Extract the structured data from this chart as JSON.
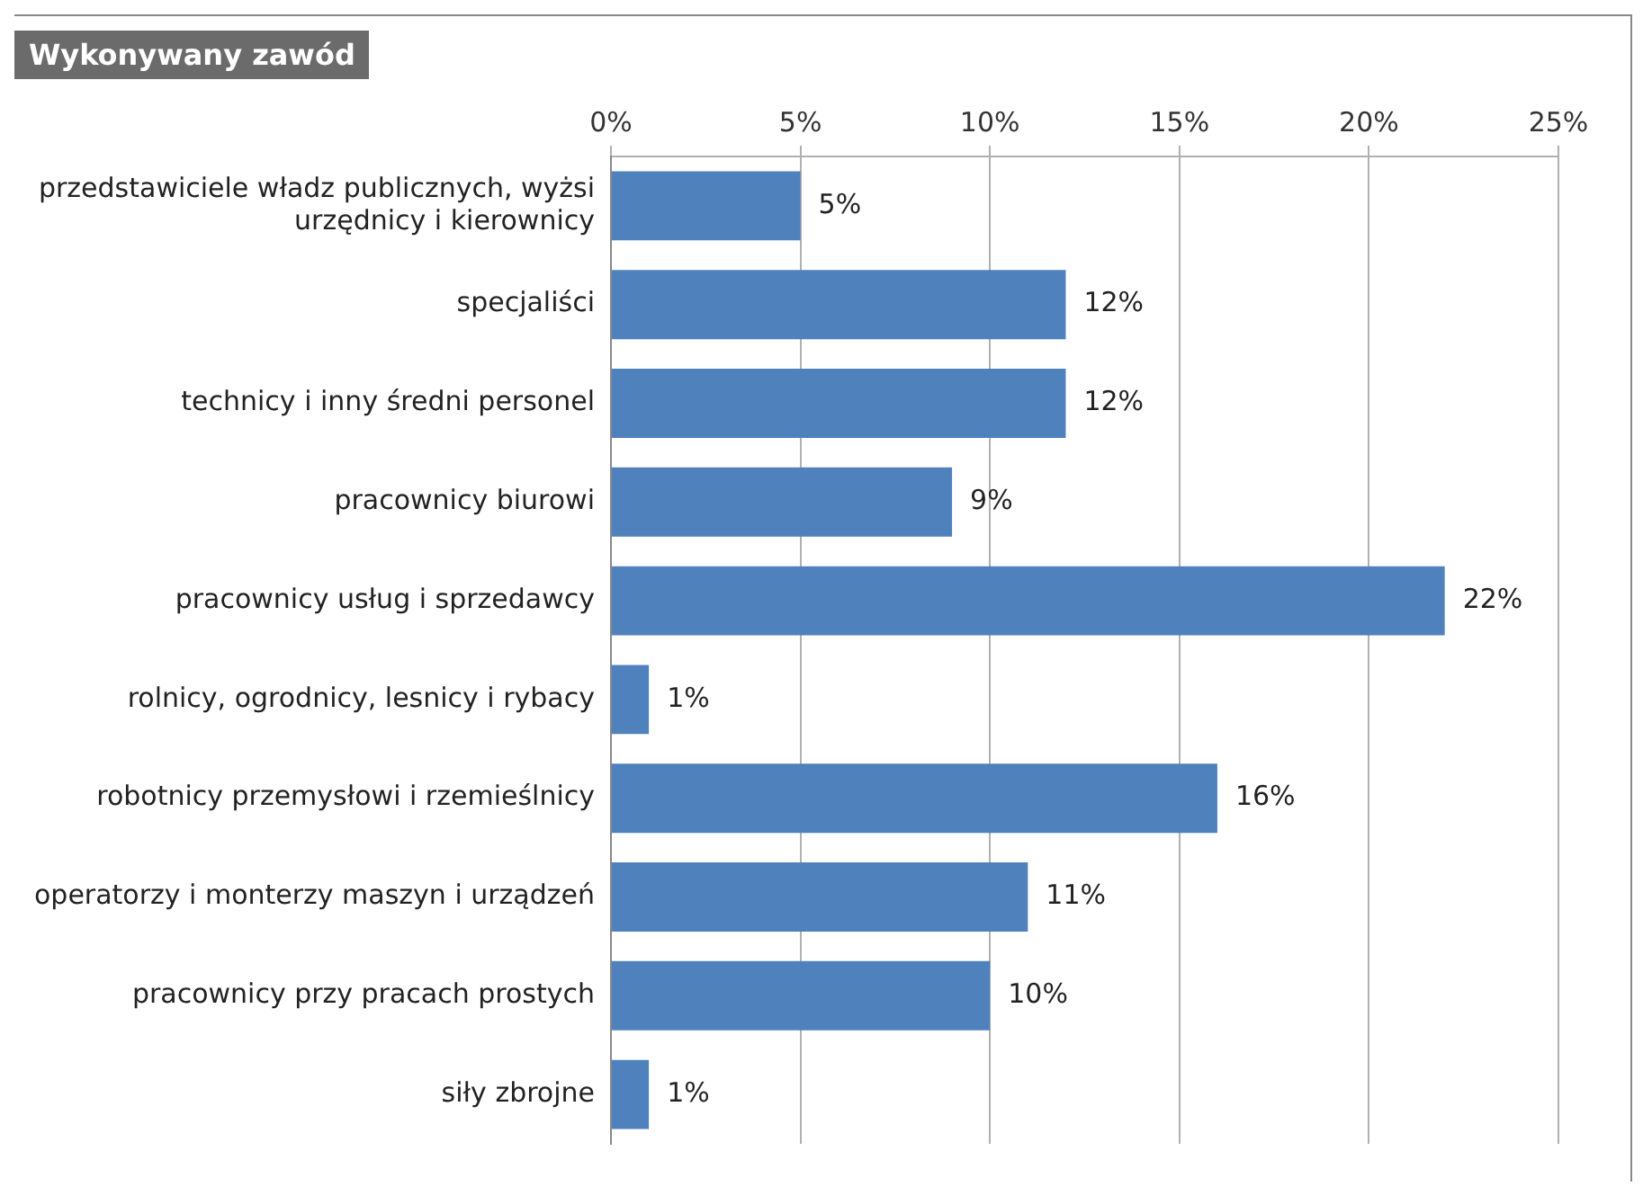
{
  "chart_data": {
    "type": "bar",
    "orientation": "horizontal",
    "title": "Wykonywany zawód",
    "categories": [
      "przedstawiciele władz publicznych, wyżsi urzędnicy i kierownicy",
      "specjaliści",
      "technicy i inny średni personel",
      "pracownicy biurowi",
      "pracownicy usług i sprzedawcy",
      "rolnicy, ogrodnicy, lesnicy i rybacy",
      "robotnicy przemysłowi i rzemieślnicy",
      "operatorzy i monterzy maszyn i urządzeń",
      "pracownicy przy pracach prostych",
      "siły zbrojne"
    ],
    "values": [
      5,
      12,
      12,
      9,
      22,
      1,
      16,
      11,
      10,
      1
    ],
    "value_labels": [
      "5%",
      "12%",
      "12%",
      "9%",
      "22%",
      "1%",
      "16%",
      "11%",
      "10%",
      "1%"
    ],
    "color": "#4f81bd",
    "xlim": [
      0,
      25
    ],
    "xticks": [
      {
        "value": 0,
        "label": "0%"
      },
      {
        "value": 5,
        "label": "5%"
      },
      {
        "value": 10,
        "label": "10%"
      },
      {
        "value": 15,
        "label": "15%"
      },
      {
        "value": 20,
        "label": "20%"
      },
      {
        "value": 25,
        "label": "25%"
      }
    ],
    "grid": "x",
    "legend": false
  }
}
